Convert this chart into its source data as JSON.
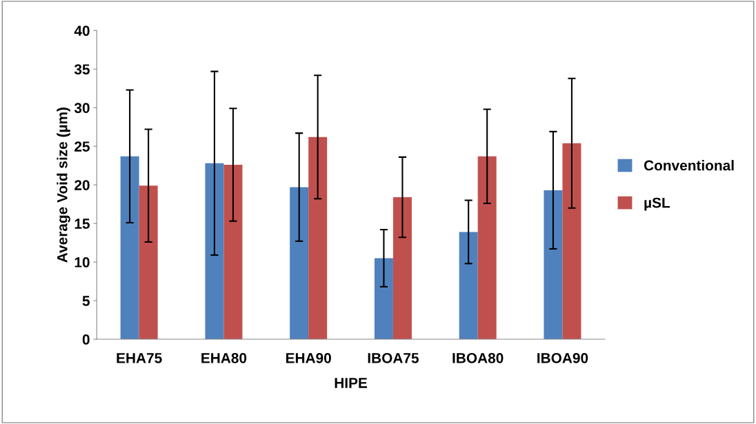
{
  "chart_data": {
    "type": "bar",
    "xlabel": "HIPE",
    "ylabel": "Average Void size (µm)",
    "categories": [
      "EHA75",
      "EHA80",
      "EHA90",
      "IBOA75",
      "IBOA80",
      "IBOA90"
    ],
    "series": [
      {
        "name": "Conventional",
        "color": "#4f81bd",
        "values": [
          23.7,
          22.8,
          19.7,
          10.5,
          13.9,
          19.3
        ],
        "errors": [
          8.6,
          11.9,
          7.0,
          3.7,
          4.1,
          7.6
        ]
      },
      {
        "name": "µSL",
        "color": "#c0504d",
        "values": [
          19.9,
          22.6,
          26.2,
          18.4,
          23.7,
          25.4
        ],
        "errors": [
          7.3,
          7.3,
          8.0,
          5.2,
          6.1,
          8.4
        ]
      }
    ],
    "ylim": [
      0,
      40
    ],
    "yticks": [
      0,
      5,
      10,
      15,
      20,
      25,
      30,
      35,
      40
    ],
    "grid": false,
    "legend": "right"
  }
}
